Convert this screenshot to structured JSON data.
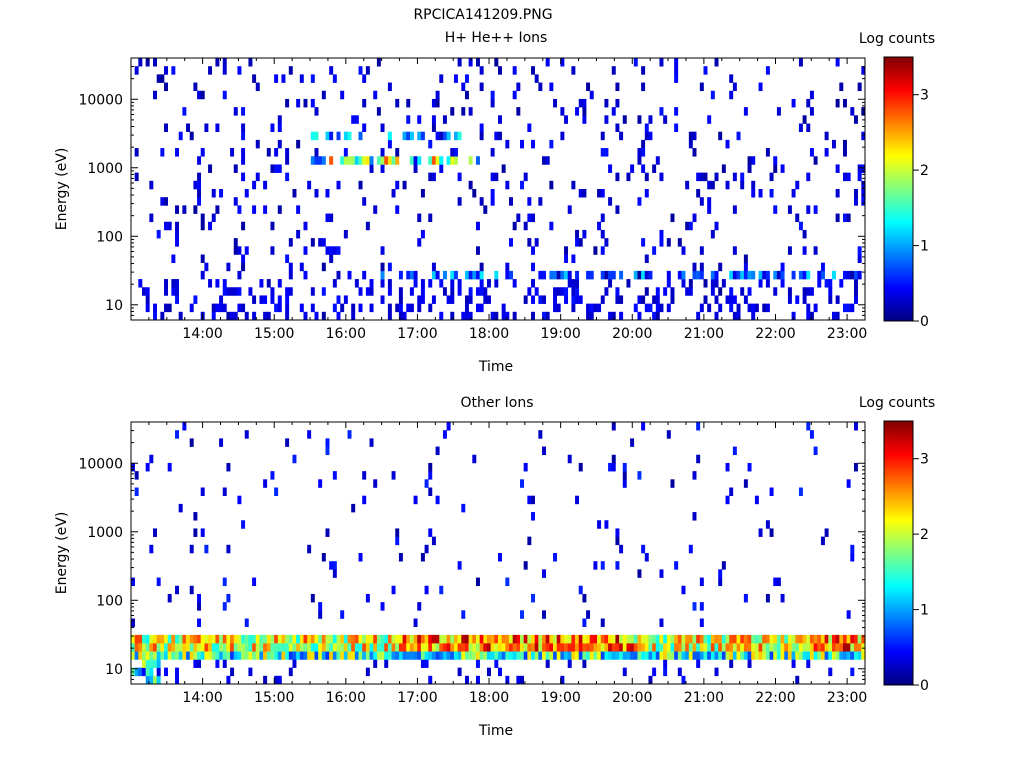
{
  "page_title": "RPCICA141209.PNG",
  "chart_data": [
    {
      "type": "heatmap",
      "title": "H+ He++ Ions",
      "xlabel": "Time",
      "ylabel": "Energy (eV)",
      "y_scale": "log",
      "ylim": [
        6,
        40000
      ],
      "xlim": [
        "13:00",
        "23:15"
      ],
      "x_ticks": [
        "14:00",
        "15:00",
        "16:00",
        "17:00",
        "18:00",
        "19:00",
        "20:00",
        "21:00",
        "22:00",
        "23:00"
      ],
      "y_ticks": [
        "10",
        "100",
        "1000",
        "10000"
      ],
      "colorbar": {
        "label": "Log counts",
        "ticks": [
          "0",
          "1",
          "2",
          "3"
        ],
        "range": [
          0,
          3.5
        ]
      },
      "features": [
        {
          "description_value": "sparse background counts",
          "energy_eV": [
            6,
            40000
          ],
          "log_counts": 0.2
        },
        {
          "description_value": "band",
          "energy_eV": 1300,
          "time": [
            "15:30",
            "18:00"
          ],
          "log_counts": 2.0
        },
        {
          "description_value": "band",
          "energy_eV": 2800,
          "time": [
            "15:30",
            "17:40"
          ],
          "log_counts": 1.3
        },
        {
          "description_value": "band",
          "energy_eV": 30,
          "time": [
            "16:30",
            "23:15"
          ],
          "log_counts": 1.0
        }
      ]
    },
    {
      "type": "heatmap",
      "title": "Other Ions",
      "xlabel": "Time",
      "ylabel": "Energy (eV)",
      "y_scale": "log",
      "ylim": [
        6,
        40000
      ],
      "xlim": [
        "13:00",
        "23:15"
      ],
      "x_ticks": [
        "14:00",
        "15:00",
        "16:00",
        "17:00",
        "18:00",
        "19:00",
        "20:00",
        "21:00",
        "22:00",
        "23:00"
      ],
      "y_ticks": [
        "10",
        "100",
        "1000",
        "10000"
      ],
      "colorbar": {
        "label": "Log counts",
        "ticks": [
          "0",
          "1",
          "2",
          "3"
        ],
        "range": [
          0,
          3.5
        ]
      },
      "features": [
        {
          "description_value": "intense low-energy band",
          "energy_eV": [
            15,
            32
          ],
          "time": [
            "13:00",
            "23:15"
          ],
          "log_counts": 3.0
        },
        {
          "description_value": "sparse counts",
          "energy_eV": [
            40,
            40000
          ],
          "log_counts": 0.2
        }
      ]
    }
  ]
}
